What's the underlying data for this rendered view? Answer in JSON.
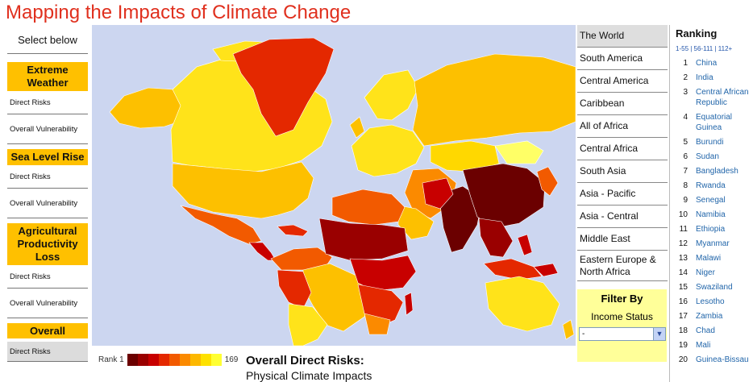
{
  "title": "Mapping the Impacts of Climate Change",
  "left_panel": {
    "header": "Select below",
    "categories": [
      {
        "label": "Extreme Weather",
        "items": [
          "Direct Risks",
          "Overall Vulnerability"
        ]
      },
      {
        "label": "Sea Level Rise",
        "items": [
          "Direct Risks",
          "Overall Vulnerability"
        ]
      },
      {
        "label": "Agricultural Productivity Loss",
        "items": [
          "Direct Risks",
          "Overall Vulnerability"
        ]
      },
      {
        "label": "Overall",
        "items": [
          "Direct Risks"
        ]
      }
    ],
    "active_item": "Overall / Direct Risks"
  },
  "map": {
    "ocean_color": "#ccd6f0",
    "legend": {
      "min_label": "Rank 1",
      "max_label": "169",
      "colors": [
        "#6b0000",
        "#9a0000",
        "#c80000",
        "#e42800",
        "#f25a00",
        "#fb8a00",
        "#fdb800",
        "#fee100",
        "#ffff33"
      ]
    },
    "title": "Overall Direct Risks:",
    "subtitle": "Physical Climate Impacts"
  },
  "regions": {
    "items": [
      "The World",
      "South America",
      "Central America",
      "Caribbean",
      "All of Africa",
      "Central Africa",
      "South Asia",
      "Asia - Pacific",
      "Asia - Central",
      "Middle East",
      "Eastern Europe & North Africa"
    ],
    "active": "The World"
  },
  "filter": {
    "title": "Filter By",
    "subtitle": "Income Status",
    "selected": "-"
  },
  "ranking": {
    "title": "Ranking",
    "pages": "1-55 | 56-111 | 112+",
    "rows": [
      {
        "rank": "1",
        "country": "China"
      },
      {
        "rank": "2",
        "country": "India"
      },
      {
        "rank": "3",
        "country": "Central African Republic"
      },
      {
        "rank": "4",
        "country": "Equatorial Guinea"
      },
      {
        "rank": "5",
        "country": "Burundi"
      },
      {
        "rank": "6",
        "country": "Sudan"
      },
      {
        "rank": "7",
        "country": "Bangladesh"
      },
      {
        "rank": "8",
        "country": "Rwanda"
      },
      {
        "rank": "9",
        "country": "Senegal"
      },
      {
        "rank": "10",
        "country": "Namibia"
      },
      {
        "rank": "11",
        "country": "Ethiopia"
      },
      {
        "rank": "12",
        "country": "Myanmar"
      },
      {
        "rank": "13",
        "country": "Malawi"
      },
      {
        "rank": "14",
        "country": "Niger"
      },
      {
        "rank": "15",
        "country": "Swaziland"
      },
      {
        "rank": "16",
        "country": "Lesotho"
      },
      {
        "rank": "17",
        "country": "Zambia"
      },
      {
        "rank": "18",
        "country": "Chad"
      },
      {
        "rank": "19",
        "country": "Mali"
      },
      {
        "rank": "20",
        "country": "Guinea-Bissau"
      }
    ]
  }
}
